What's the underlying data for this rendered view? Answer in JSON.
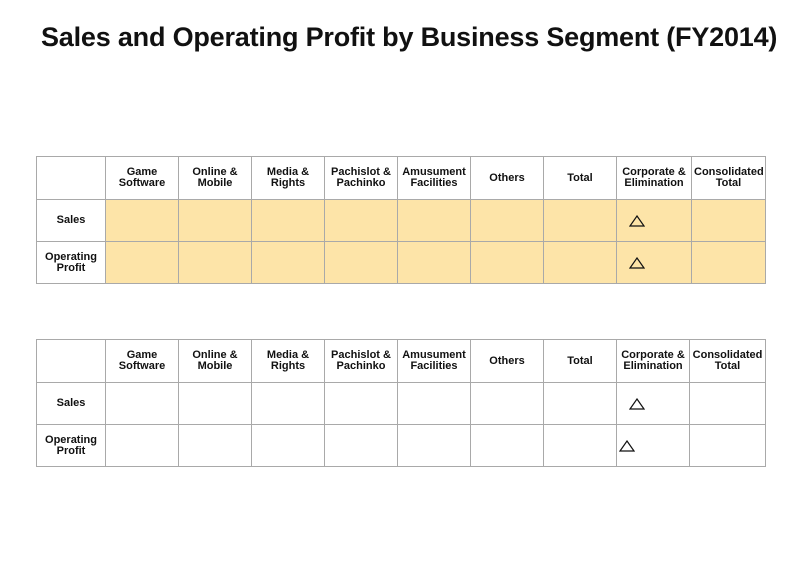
{
  "title": "Sales and Operating Profit by Business Segment (FY2014)",
  "colors": {
    "highlight_fill": "#fde4a8",
    "border": "#a9a9a9"
  },
  "tables": [
    {
      "columns": [
        "Game\nSoftware",
        "Online &\nMobile",
        "Media &\nRights",
        "Pachislot &\nPachinko",
        "Amusument\nFacilities",
        "Others",
        "Total",
        "Corporate &\nElimination",
        "Consolidated\nTotal"
      ],
      "rows": [
        {
          "label": "Sales",
          "cells": [
            "",
            "",
            "",
            "",
            "",
            "",
            "",
            "△",
            ""
          ]
        },
        {
          "label": "Operating\nProfit",
          "cells": [
            "",
            "",
            "",
            "",
            "",
            "",
            "",
            "△",
            ""
          ]
        }
      ]
    },
    {
      "columns": [
        "Game\nSoftware",
        "Online &\nMobile",
        "Media &\nRights",
        "Pachislot &\nPachinko",
        "Amusument\nFacilities",
        "Others",
        "Total",
        "Corporate &\nElimination",
        "Consolidated\nTotal"
      ],
      "rows": [
        {
          "label": "Sales",
          "cells": [
            "",
            "",
            "",
            "",
            "",
            "",
            "",
            "△",
            ""
          ]
        },
        {
          "label": "Operating\nProfit",
          "cells": [
            "",
            "",
            "",
            "",
            "",
            "",
            "",
            "△",
            ""
          ]
        }
      ]
    }
  ]
}
